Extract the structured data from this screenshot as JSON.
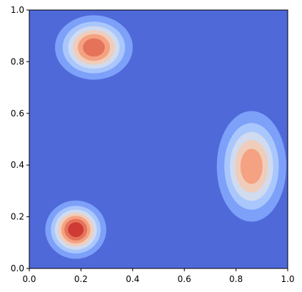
{
  "chart_data": {
    "type": "heatmap",
    "subtype": "filled-contour",
    "colormap": "coolwarm",
    "grid": false,
    "xlim": [
      0,
      1
    ],
    "ylim": [
      0,
      1
    ],
    "x_ticks": [
      "0.0",
      "0.2",
      "0.4",
      "0.6",
      "0.8",
      "1.0"
    ],
    "y_ticks": [
      "0.0",
      "0.2",
      "0.4",
      "0.6",
      "0.8",
      "1.0"
    ],
    "level_colors": [
      "#4f69d9",
      "#7da0f9",
      "#aac7fd",
      "#d0dbef",
      "#f0cdbb",
      "#f5a282",
      "#e4735a",
      "#cd3b34"
    ],
    "peaks": [
      {
        "cx": 0.18,
        "cy": 0.15,
        "rx": 0.11,
        "ry": 0.105,
        "intensity": 7
      },
      {
        "cx": 0.25,
        "cy": 0.855,
        "rx": 0.145,
        "ry": 0.12,
        "intensity": 6
      },
      {
        "cx": 0.86,
        "cy": 0.395,
        "rx": 0.135,
        "ry": 0.215,
        "intensity": 5
      }
    ]
  }
}
